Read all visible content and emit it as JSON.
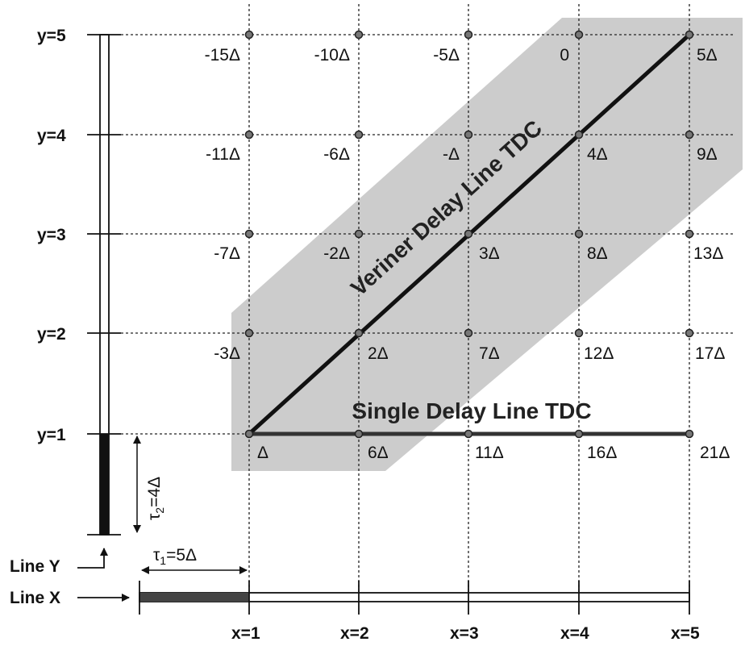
{
  "y_labels": [
    "y=5",
    "y=4",
    "y=3",
    "y=2",
    "y=1"
  ],
  "x_labels": [
    "x=1",
    "x=2",
    "x=3",
    "x=4",
    "x=5"
  ],
  "grid_values": [
    [
      "-15Δ",
      "-10Δ",
      "-5Δ",
      "0",
      "5Δ"
    ],
    [
      "-11Δ",
      "-6Δ",
      "-Δ",
      "4Δ",
      "9Δ"
    ],
    [
      "-7Δ",
      "-2Δ",
      "3Δ",
      "8Δ",
      "13Δ"
    ],
    [
      "-3Δ",
      "2Δ",
      "7Δ",
      "12Δ",
      "17Δ"
    ],
    [
      "Δ",
      "6Δ",
      "11Δ",
      "16Δ",
      "21Δ"
    ]
  ],
  "vernier_label": "Veriner Delay Line TDC",
  "single_label": "Single Delay Line TDC",
  "line_y_label": "Line Y",
  "line_x_label": "Line X",
  "tau2": {
    "sym": "τ",
    "sub": "2",
    "rest": "=4Δ"
  },
  "tau1": {
    "sym": "τ",
    "sub": "1",
    "rest": "=5Δ"
  },
  "colors": {
    "band": "#cccccc",
    "ink": "#111111",
    "line_fill": "#222222",
    "node": "#777777"
  }
}
